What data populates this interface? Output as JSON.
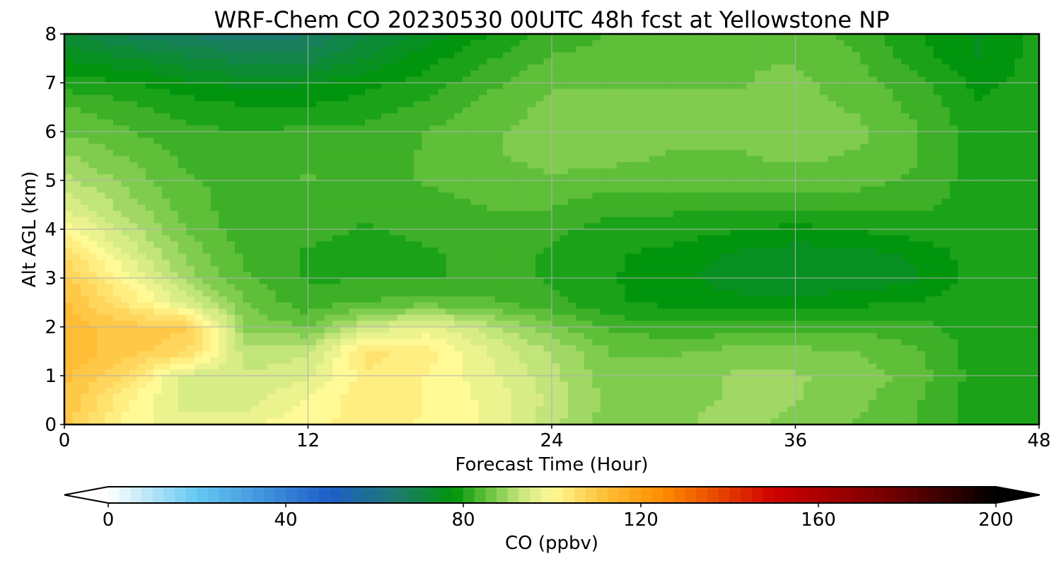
{
  "chart_data": {
    "type": "heatmap",
    "title": "WRF-Chem CO  20230530 00UTC 48h fcst at Yellowstone NP",
    "xlabel": "Forecast Time (Hour)",
    "ylabel": "Alt AGL (km)",
    "xlim": [
      0,
      48
    ],
    "ylim": [
      0,
      8
    ],
    "xticks": [
      0,
      12,
      24,
      36,
      48
    ],
    "yticks": [
      0,
      1,
      2,
      3,
      4,
      5,
      6,
      7,
      8
    ],
    "grid": true,
    "x": [
      0,
      3,
      6,
      9,
      12,
      15,
      18,
      21,
      24,
      27,
      30,
      33,
      36,
      39,
      42,
      45,
      48
    ],
    "y": [
      0,
      0.5,
      1,
      1.5,
      2,
      2.5,
      3,
      3.5,
      4,
      4.5,
      5,
      5.5,
      6,
      6.5,
      7,
      7.5,
      8
    ],
    "z": [
      [
        110,
        100,
        97,
        98,
        101,
        102,
        101,
        98,
        92,
        87,
        88,
        90,
        88,
        86,
        84,
        80,
        80
      ],
      [
        111,
        102,
        95,
        95,
        99,
        103,
        101,
        98,
        93,
        88,
        88,
        89,
        89,
        87,
        84,
        80,
        80
      ],
      [
        112,
        106,
        95,
        94,
        96,
        103,
        101,
        97,
        92,
        87,
        87,
        89,
        89,
        88,
        85,
        80,
        80
      ],
      [
        113,
        110,
        107,
        92,
        93,
        105,
        102,
        96,
        91,
        86,
        86,
        87,
        87,
        86,
        84,
        80,
        80
      ],
      [
        113,
        110,
        109,
        88,
        86,
        94,
        97,
        92,
        87,
        83,
        82,
        82,
        83,
        83,
        82,
        80,
        80
      ],
      [
        112,
        104,
        95,
        86,
        82,
        84,
        85,
        84,
        82,
        79,
        78,
        77,
        77,
        78,
        79,
        80,
        80
      ],
      [
        110,
        100,
        90,
        84,
        81,
        81,
        81,
        82,
        81,
        79,
        77,
        75,
        74,
        74,
        76,
        80,
        80
      ],
      [
        105,
        96,
        88,
        83,
        81,
        80,
        81,
        82,
        81,
        79,
        78,
        76,
        75,
        75,
        77,
        80,
        80
      ],
      [
        100,
        93,
        86,
        82,
        82,
        81,
        82,
        83,
        82,
        80,
        80,
        79,
        78,
        79,
        80,
        80,
        80
      ],
      [
        96,
        90,
        85,
        82,
        82,
        82,
        83,
        84,
        84,
        82,
        82,
        82,
        82,
        82,
        82,
        80,
        80
      ],
      [
        92,
        88,
        84,
        83,
        84,
        83,
        84,
        85,
        86,
        85,
        85,
        85,
        85,
        85,
        83,
        80,
        80
      ],
      [
        89,
        86,
        83,
        83,
        83,
        83,
        84,
        86,
        87,
        87,
        86,
        86,
        87,
        86,
        84,
        80,
        80
      ],
      [
        86,
        84,
        82,
        81,
        82,
        82,
        84,
        86,
        87,
        87,
        87,
        87,
        87,
        87,
        84,
        80,
        80
      ],
      [
        84,
        82,
        80,
        79,
        79,
        80,
        82,
        85,
        87,
        87,
        87,
        87,
        87,
        86,
        83,
        79,
        80
      ],
      [
        80,
        79,
        77,
        75,
        76,
        78,
        80,
        83,
        86,
        86,
        86,
        86,
        87,
        85,
        82,
        78,
        80
      ],
      [
        76,
        74,
        72,
        70,
        70,
        74,
        78,
        81,
        84,
        85,
        85,
        86,
        86,
        84,
        80,
        76,
        80
      ],
      [
        72,
        68,
        66,
        64,
        66,
        71,
        75,
        79,
        82,
        84,
        85,
        86,
        85,
        83,
        79,
        76,
        80
      ]
    ],
    "colorbar": {
      "label": "CO  (ppbv)",
      "min": 0,
      "max": 200,
      "ticks": [
        0,
        40,
        80,
        120,
        160,
        200
      ],
      "extend": "both",
      "stops": [
        {
          "v": 0,
          "c": "#ffffff"
        },
        {
          "v": 20,
          "c": "#64c8f0"
        },
        {
          "v": 50,
          "c": "#1e5ec8"
        },
        {
          "v": 65,
          "c": "#1e7a6e"
        },
        {
          "v": 78,
          "c": "#00960a"
        },
        {
          "v": 86,
          "c": "#6cc540"
        },
        {
          "v": 93,
          "c": "#c8e680"
        },
        {
          "v": 100,
          "c": "#fffa96"
        },
        {
          "v": 112,
          "c": "#ffbe37"
        },
        {
          "v": 125,
          "c": "#ff8c00"
        },
        {
          "v": 150,
          "c": "#cd0000"
        },
        {
          "v": 175,
          "c": "#780000"
        },
        {
          "v": 200,
          "c": "#000000"
        }
      ]
    }
  }
}
